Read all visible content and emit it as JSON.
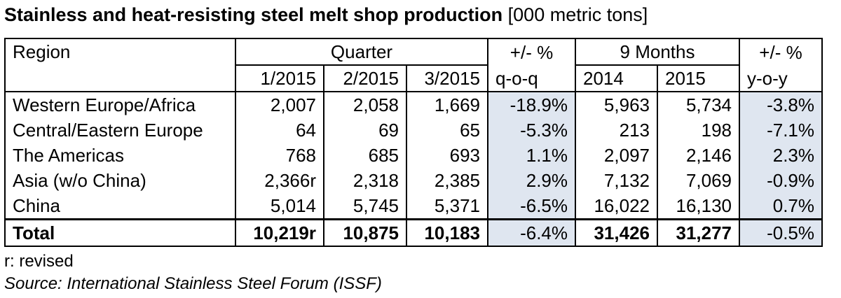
{
  "title": {
    "main": "Stainless and heat-resisting steel melt shop production",
    "unit": "[000 metric tons]"
  },
  "chart_data": {
    "type": "table",
    "header_row1": {
      "region": "Region",
      "quarter": "Quarter",
      "qoq_pct": "+/- %",
      "nine_months": "9 Months",
      "yoy_pct": "+/- %"
    },
    "header_row2": [
      "1/2015",
      "2/2015",
      "3/2015",
      "q-o-q",
      "2014",
      "2015",
      "y-o-y"
    ],
    "rows": [
      {
        "region": "Western Europe/Africa",
        "q1_2015": "2,007",
        "q2_2015": "2,058",
        "q3_2015": "1,669",
        "qoq": "-18.9%",
        "m9_2014": "5,963",
        "m9_2015": "5,734",
        "yoy": "-3.8%"
      },
      {
        "region": "Central/Eastern Europe",
        "q1_2015": "64",
        "q2_2015": "69",
        "q3_2015": "65",
        "qoq": "-5.3%",
        "m9_2014": "213",
        "m9_2015": "198",
        "yoy": "-7.1%"
      },
      {
        "region": "The Americas",
        "q1_2015": "768",
        "q2_2015": "685",
        "q3_2015": "693",
        "qoq": "1.1%",
        "m9_2014": "2,097",
        "m9_2015": "2,146",
        "yoy": "2.3%"
      },
      {
        "region": "Asia (w/o China)",
        "q1_2015": "2,366r",
        "q2_2015": "2,318",
        "q3_2015": "2,385",
        "qoq": "2.9%",
        "m9_2014": "7,132",
        "m9_2015": "7,069",
        "yoy": "-0.9%"
      },
      {
        "region": "China",
        "q1_2015": "5,014",
        "q2_2015": "5,745",
        "q3_2015": "5,371",
        "qoq": "-6.5%",
        "m9_2014": "16,022",
        "m9_2015": "16,130",
        "yoy": "0.7%"
      }
    ],
    "total": {
      "region": "Total",
      "q1_2015": "10,219r",
      "q2_2015": "10,875",
      "q3_2015": "10,183",
      "qoq": "-6.4%",
      "m9_2014": "31,426",
      "m9_2015": "31,277",
      "yoy": "-0.5%"
    }
  },
  "footnotes": {
    "revised": "r: revised",
    "source": "Source: International Stainless Steel Forum (ISSF)"
  },
  "colors": {
    "shade": "#dfe6f0",
    "border": "#000000"
  }
}
